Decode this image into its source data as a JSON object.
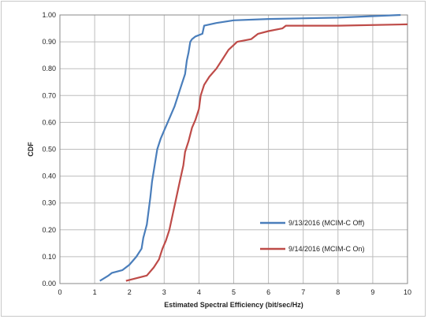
{
  "chart_data": {
    "type": "line",
    "title": "",
    "xlabel": "Estimated Spectral Efficiency (bit/sec/Hz)",
    "ylabel": "CDF",
    "xlim": [
      0,
      10
    ],
    "ylim": [
      0,
      1
    ],
    "x_ticks": [
      "0",
      "1",
      "2",
      "3",
      "4",
      "5",
      "6",
      "7",
      "8",
      "9",
      "10"
    ],
    "y_ticks": [
      "0.00",
      "0.10",
      "0.20",
      "0.30",
      "0.40",
      "0.50",
      "0.60",
      "0.70",
      "0.80",
      "0.90",
      "1.00"
    ],
    "grid": true,
    "legend_position": "lower-right",
    "series": [
      {
        "name": "9/13/2016 (MCIM-C Off)",
        "color": "#4a7ebb",
        "x": [
          1.15,
          1.4,
          1.5,
          1.8,
          2.0,
          2.2,
          2.35,
          2.4,
          2.5,
          2.55,
          2.6,
          2.65,
          2.7,
          2.75,
          2.8,
          2.9,
          3.0,
          3.1,
          3.2,
          3.3,
          3.4,
          3.5,
          3.6,
          3.65,
          3.7,
          3.75,
          3.8,
          3.9,
          4.1,
          4.15,
          4.5,
          5.0,
          6.0,
          8.0,
          9.8
        ],
        "y": [
          0.01,
          0.03,
          0.04,
          0.05,
          0.07,
          0.1,
          0.13,
          0.17,
          0.22,
          0.27,
          0.32,
          0.38,
          0.42,
          0.46,
          0.5,
          0.54,
          0.57,
          0.6,
          0.63,
          0.66,
          0.7,
          0.74,
          0.78,
          0.83,
          0.86,
          0.9,
          0.91,
          0.92,
          0.93,
          0.96,
          0.97,
          0.98,
          0.985,
          0.99,
          1.0
        ]
      },
      {
        "name": "9/14/2016 (MCIM-C On)",
        "color": "#be4b48",
        "x": [
          1.9,
          2.5,
          2.7,
          2.85,
          2.95,
          3.05,
          3.15,
          3.25,
          3.35,
          3.45,
          3.55,
          3.6,
          3.7,
          3.8,
          3.9,
          4.0,
          4.05,
          4.15,
          4.3,
          4.5,
          4.7,
          4.85,
          5.1,
          5.5,
          5.7,
          6.0,
          6.4,
          6.5,
          7.0,
          8.0,
          10.0
        ],
        "y": [
          0.01,
          0.03,
          0.06,
          0.09,
          0.13,
          0.16,
          0.2,
          0.26,
          0.32,
          0.38,
          0.44,
          0.49,
          0.53,
          0.58,
          0.61,
          0.65,
          0.7,
          0.74,
          0.77,
          0.8,
          0.84,
          0.87,
          0.9,
          0.91,
          0.93,
          0.94,
          0.95,
          0.96,
          0.96,
          0.96,
          0.965
        ]
      }
    ]
  }
}
